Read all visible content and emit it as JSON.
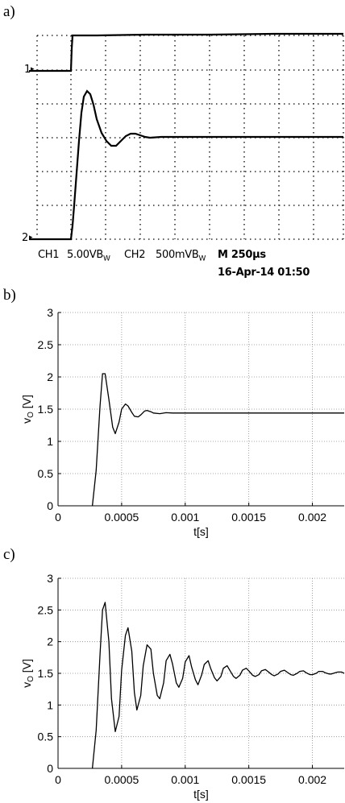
{
  "panels": {
    "a": "a)",
    "b": "b)",
    "c": "c)"
  },
  "scope": {
    "ch1_marker": "1",
    "ch2_marker": "2",
    "ch1_label": "CH1",
    "ch1_scale": "5.00VB",
    "ch1_sub": "W",
    "ch2_label": "CH2",
    "ch2_scale": "500mVB",
    "ch2_sub": "W",
    "timebase": "M 250μs",
    "timestamp": "16-Apr-14 01:50",
    "colors": {
      "trace": "#000000",
      "grid": "#000000"
    }
  },
  "chart_data": [
    {
      "type": "line",
      "panel": "b)",
      "xlabel": "t[s]",
      "ylabel": "vO [V]",
      "xlim": [
        0,
        0.00225
      ],
      "ylim": [
        0,
        3
      ],
      "xticks": [
        0,
        0.0005,
        0.001,
        0.0015,
        0.002
      ],
      "xtick_labels": [
        "0",
        "0.0005",
        "0.001",
        "0.0015",
        "0.002"
      ],
      "yticks": [
        0,
        0.5,
        1,
        1.5,
        2,
        2.5,
        3
      ],
      "ytick_labels": [
        "0",
        "0.5",
        "1",
        "1.5",
        "2",
        "2.5",
        "3"
      ],
      "grid": true,
      "series": [
        {
          "x": [
            0.00027,
            0.0003,
            0.00033,
            0.00035,
            0.00037,
            0.0004,
            0.00043,
            0.00045,
            0.00048,
            0.0005,
            0.00053,
            0.00055,
            0.00058,
            0.0006,
            0.00063,
            0.00065,
            0.00068,
            0.0007,
            0.00073,
            0.00075,
            0.0008,
            0.00085,
            0.0009,
            0.00095,
            0.001,
            0.0011,
            0.0012,
            0.0015,
            0.0018,
            0.002,
            0.00225
          ],
          "y": [
            0,
            0.55,
            1.55,
            2.05,
            2.05,
            1.65,
            1.22,
            1.12,
            1.3,
            1.5,
            1.58,
            1.55,
            1.45,
            1.39,
            1.38,
            1.41,
            1.47,
            1.48,
            1.46,
            1.44,
            1.43,
            1.445,
            1.44,
            1.44,
            1.44,
            1.44,
            1.44,
            1.44,
            1.44,
            1.44,
            1.44
          ]
        }
      ]
    },
    {
      "type": "line",
      "panel": "c)",
      "xlabel": "t[s]",
      "ylabel": "vO [V]",
      "xlim": [
        0,
        0.00225
      ],
      "ylim": [
        0,
        3
      ],
      "xticks": [
        0,
        0.0005,
        0.001,
        0.0015,
        0.002
      ],
      "xtick_labels": [
        "0",
        "0.0005",
        "0.001",
        "0.0015",
        "0.002"
      ],
      "yticks": [
        0,
        0.5,
        1,
        1.5,
        2,
        2.5,
        3
      ],
      "ytick_labels": [
        "0",
        "0.5",
        "1",
        "1.5",
        "2",
        "2.5",
        "3"
      ],
      "grid": true,
      "series": [
        {
          "x": [
            0.00027,
            0.0003,
            0.00033,
            0.00035,
            0.00037,
            0.0004,
            0.00042,
            0.00045,
            0.00048,
            0.0005,
            0.00053,
            0.00055,
            0.00058,
            0.0006,
            0.00062,
            0.00065,
            0.00067,
            0.0007,
            0.00073,
            0.00075,
            0.00078,
            0.0008,
            0.00083,
            0.00085,
            0.00088,
            0.0009,
            0.00093,
            0.00095,
            0.00098,
            0.001,
            0.00103,
            0.00105,
            0.00108,
            0.0011,
            0.00113,
            0.00115,
            0.00118,
            0.0012,
            0.00123,
            0.00125,
            0.00128,
            0.0013,
            0.00133,
            0.00135,
            0.00138,
            0.0014,
            0.00143,
            0.00145,
            0.00148,
            0.0015,
            0.00153,
            0.00155,
            0.00158,
            0.0016,
            0.00163,
            0.00165,
            0.00168,
            0.0017,
            0.00173,
            0.00175,
            0.00178,
            0.0018,
            0.00183,
            0.00185,
            0.00188,
            0.0019,
            0.00193,
            0.00195,
            0.00198,
            0.002,
            0.00203,
            0.00205,
            0.00208,
            0.0021,
            0.00213,
            0.00215,
            0.00218,
            0.0022,
            0.00223,
            0.00225
          ],
          "y": [
            0,
            0.6,
            1.8,
            2.5,
            2.62,
            2.0,
            1.1,
            0.58,
            0.82,
            1.55,
            2.1,
            2.22,
            1.85,
            1.2,
            0.92,
            1.15,
            1.62,
            1.95,
            1.88,
            1.5,
            1.15,
            1.1,
            1.35,
            1.7,
            1.8,
            1.65,
            1.35,
            1.28,
            1.42,
            1.68,
            1.78,
            1.6,
            1.4,
            1.32,
            1.48,
            1.64,
            1.7,
            1.58,
            1.43,
            1.38,
            1.45,
            1.58,
            1.62,
            1.55,
            1.45,
            1.42,
            1.47,
            1.55,
            1.58,
            1.54,
            1.47,
            1.45,
            1.48,
            1.54,
            1.56,
            1.53,
            1.48,
            1.46,
            1.49,
            1.53,
            1.55,
            1.52,
            1.48,
            1.47,
            1.5,
            1.53,
            1.54,
            1.51,
            1.48,
            1.48,
            1.5,
            1.53,
            1.53,
            1.51,
            1.49,
            1.49,
            1.51,
            1.52,
            1.52,
            1.5
          ]
        }
      ]
    }
  ]
}
